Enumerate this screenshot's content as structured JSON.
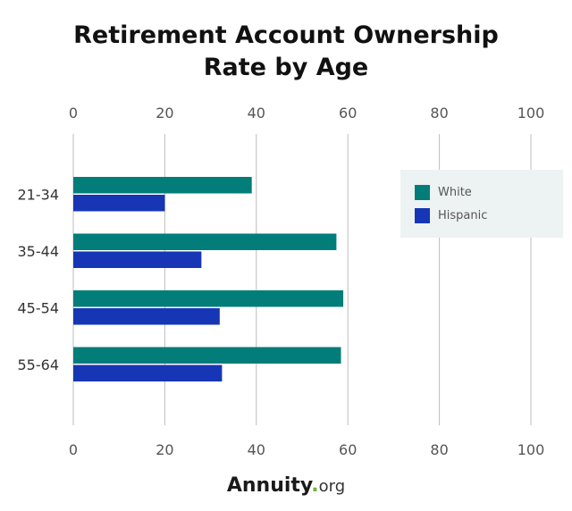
{
  "chart_data": {
    "type": "bar",
    "orientation": "horizontal",
    "title_line1": "Retirement Account Ownership",
    "title_line2": "Rate by Age",
    "categories": [
      "21-34",
      "35-44",
      "45-54",
      "55-64"
    ],
    "series": [
      {
        "name": "White",
        "values": [
          39,
          57.5,
          59,
          58.5
        ],
        "color": "#037d79"
      },
      {
        "name": "Hispanic",
        "values": [
          20,
          28,
          32,
          32.5
        ],
        "color": "#1736b5"
      }
    ],
    "xlim": [
      0,
      100
    ],
    "xticks": [
      "0",
      "20",
      "40",
      "60",
      "80",
      "100"
    ],
    "grid": true,
    "legend_position": "right"
  },
  "brand": {
    "name": "Annuity",
    "dot": ".",
    "tld": "org"
  }
}
